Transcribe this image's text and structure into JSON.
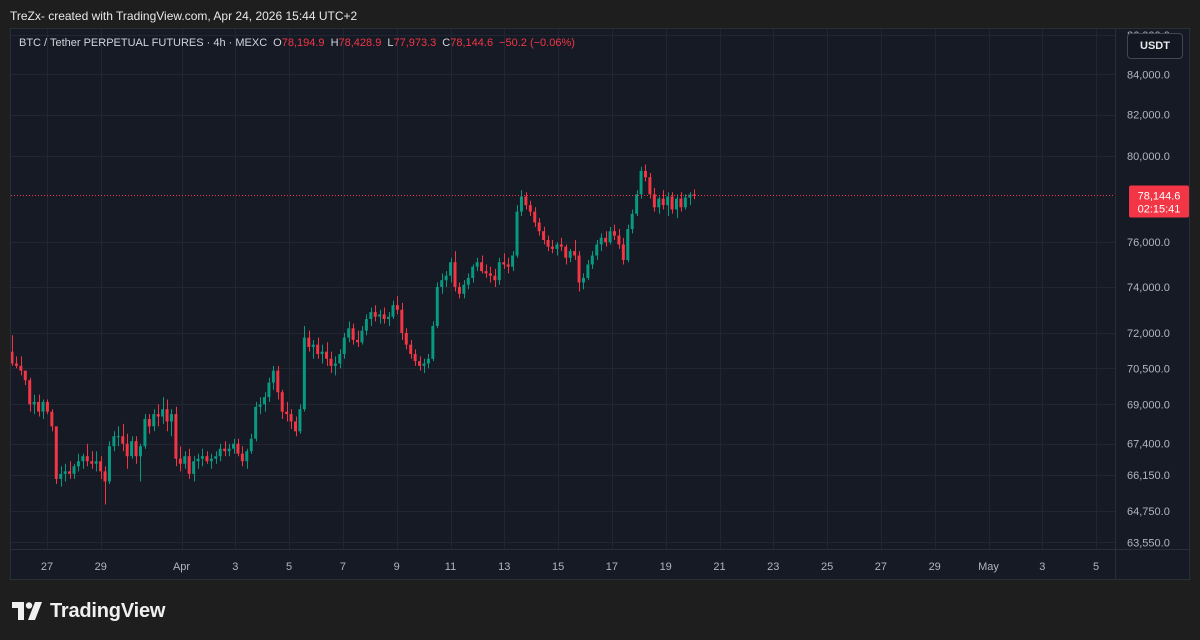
{
  "caption": "TreZx- created with TradingView.com, Apr 24, 2026 15:44 UTC+2",
  "legend": {
    "symbol": "BTC / Tether PERPETUAL FUTURES · 4h · MEXC",
    "o_label": "O",
    "o_value": "78,194.9",
    "h_label": "H",
    "h_value": "78,428.9",
    "l_label": "L",
    "l_value": "77,973.3",
    "c_label": "C",
    "c_value": "78,144.6",
    "change": "−50.2 (−0.06%)"
  },
  "currency_button": "USDT",
  "brand": "TradingView",
  "colors": {
    "up": "#089981",
    "down": "#f23645",
    "background": "#161a25",
    "grid": "#222632",
    "axis_text": "#b2b5be",
    "price_line": "#f23645"
  },
  "chart_data": {
    "type": "candlestick",
    "timeframe": "4h",
    "y_scale": "log",
    "ylim": [
      63300,
      86300
    ],
    "y_ticks": [
      {
        "value": 86000,
        "label": "86,000.0"
      },
      {
        "value": 84000,
        "label": "84,000.0"
      },
      {
        "value": 82000,
        "label": "82,000.0"
      },
      {
        "value": 80000,
        "label": "80,000.0"
      },
      {
        "value": 76000,
        "label": "76,000.0"
      },
      {
        "value": 74000,
        "label": "74,000.0"
      },
      {
        "value": 72000,
        "label": "72,000.0"
      },
      {
        "value": 70500,
        "label": "70,500.0"
      },
      {
        "value": 69000,
        "label": "69,000.0"
      },
      {
        "value": 67400,
        "label": "67,400.0"
      },
      {
        "value": 66150,
        "label": "66,150.0"
      },
      {
        "value": 64750,
        "label": "64,750.0"
      },
      {
        "value": 63550,
        "label": "63,550.0"
      }
    ],
    "x_ticks": [
      {
        "day": 0,
        "label": "27"
      },
      {
        "day": 2,
        "label": "29"
      },
      {
        "day": 5,
        "label": "Apr"
      },
      {
        "day": 7,
        "label": "3"
      },
      {
        "day": 9,
        "label": "5"
      },
      {
        "day": 11,
        "label": "7"
      },
      {
        "day": 13,
        "label": "9"
      },
      {
        "day": 15,
        "label": "11"
      },
      {
        "day": 17,
        "label": "13"
      },
      {
        "day": 19,
        "label": "15"
      },
      {
        "day": 21,
        "label": "17"
      },
      {
        "day": 23,
        "label": "19"
      },
      {
        "day": 25,
        "label": "21"
      },
      {
        "day": 27,
        "label": "23"
      },
      {
        "day": 29,
        "label": "25"
      },
      {
        "day": 31,
        "label": "27"
      },
      {
        "day": 33,
        "label": "29"
      },
      {
        "day": 35,
        "label": "May"
      },
      {
        "day": 37,
        "label": "3"
      },
      {
        "day": 39,
        "label": "5"
      }
    ],
    "last_price": 78144.6,
    "last_price_label": "78,144.6",
    "countdown": "02:15:41",
    "candles": [
      [
        71200,
        71900,
        70600,
        70700
      ],
      [
        70700,
        71000,
        70500,
        70600
      ],
      [
        70600,
        71000,
        70200,
        70400
      ],
      [
        70400,
        70400,
        69800,
        70000
      ],
      [
        70000,
        70100,
        68700,
        69000
      ],
      [
        69000,
        69400,
        68600,
        69100
      ],
      [
        69100,
        69400,
        68500,
        68700
      ],
      [
        68700,
        69200,
        68400,
        69100
      ],
      [
        69100,
        69200,
        68600,
        68700
      ],
      [
        68700,
        68800,
        67900,
        68100
      ],
      [
        68100,
        68100,
        65800,
        66000
      ],
      [
        66000,
        66500,
        65700,
        66200
      ],
      [
        66200,
        66600,
        65900,
        66300
      ],
      [
        66300,
        66700,
        66000,
        66200
      ],
      [
        66200,
        66600,
        66000,
        66500
      ],
      [
        66500,
        67000,
        66300,
        66700
      ],
      [
        66700,
        67000,
        66400,
        66900
      ],
      [
        66900,
        67400,
        66500,
        66700
      ],
      [
        66700,
        67100,
        66400,
        66600
      ],
      [
        66600,
        67100,
        66300,
        66700
      ],
      [
        66700,
        66900,
        66000,
        66300
      ],
      [
        66300,
        66500,
        65000,
        65900
      ],
      [
        65900,
        67500,
        65800,
        67300
      ],
      [
        67300,
        67900,
        67100,
        67700
      ],
      [
        67700,
        68100,
        67300,
        67700
      ],
      [
        67700,
        68200,
        67100,
        67400
      ],
      [
        67400,
        67800,
        66400,
        66900
      ],
      [
        66900,
        67700,
        66800,
        67500
      ],
      [
        67500,
        67700,
        66600,
        66900
      ],
      [
        66900,
        67400,
        65900,
        67300
      ],
      [
        67300,
        68600,
        67200,
        68400
      ],
      [
        68400,
        68600,
        67800,
        68100
      ],
      [
        68100,
        68800,
        67900,
        68600
      ],
      [
        68600,
        69000,
        68100,
        68500
      ],
      [
        68500,
        69300,
        68200,
        68800
      ],
      [
        68800,
        69200,
        67900,
        68300
      ],
      [
        68300,
        68800,
        67700,
        68600
      ],
      [
        68600,
        68900,
        66500,
        66800
      ],
      [
        66800,
        67300,
        66300,
        66600
      ],
      [
        66600,
        67100,
        66400,
        66900
      ],
      [
        66900,
        67200,
        66000,
        66200
      ],
      [
        66200,
        66900,
        65900,
        66700
      ],
      [
        66700,
        67000,
        66400,
        66800
      ],
      [
        66800,
        67200,
        66500,
        66900
      ],
      [
        66900,
        67100,
        66600,
        66700
      ],
      [
        66700,
        67000,
        66400,
        66800
      ],
      [
        66800,
        67100,
        66600,
        66900
      ],
      [
        66900,
        67400,
        66700,
        67200
      ],
      [
        67200,
        67500,
        66900,
        67100
      ],
      [
        67100,
        67400,
        66900,
        67200
      ],
      [
        67200,
        67600,
        67000,
        67400
      ],
      [
        67400,
        67600,
        66900,
        67000
      ],
      [
        67000,
        67300,
        66500,
        66700
      ],
      [
        66700,
        67200,
        66400,
        67100
      ],
      [
        67100,
        67800,
        67000,
        67600
      ],
      [
        67600,
        69100,
        67500,
        68900
      ],
      [
        68900,
        69300,
        68600,
        69000
      ],
      [
        69000,
        69500,
        68700,
        69300
      ],
      [
        69300,
        70100,
        69100,
        69900
      ],
      [
        69900,
        70600,
        69600,
        70400
      ],
      [
        70400,
        70600,
        69200,
        69500
      ],
      [
        69500,
        69600,
        68400,
        68700
      ],
      [
        68700,
        69100,
        68300,
        68600
      ],
      [
        68600,
        68800,
        68000,
        68300
      ],
      [
        68300,
        68500,
        67700,
        67900
      ],
      [
        67900,
        69000,
        67800,
        68800
      ],
      [
        68800,
        72300,
        68700,
        71800
      ],
      [
        71800,
        72100,
        71200,
        71400
      ],
      [
        71400,
        71700,
        70900,
        71500
      ],
      [
        71500,
        71800,
        70900,
        71100
      ],
      [
        71100,
        71500,
        70700,
        71200
      ],
      [
        71200,
        71600,
        70600,
        70900
      ],
      [
        70900,
        71200,
        70300,
        70600
      ],
      [
        70600,
        71000,
        70200,
        70700
      ],
      [
        70700,
        71300,
        70500,
        71100
      ],
      [
        71100,
        72000,
        70900,
        71800
      ],
      [
        71800,
        72500,
        71600,
        72200
      ],
      [
        72200,
        72400,
        71500,
        71700
      ],
      [
        71700,
        72100,
        71400,
        71600
      ],
      [
        71600,
        72300,
        71500,
        72100
      ],
      [
        72100,
        72800,
        71900,
        72600
      ],
      [
        72600,
        73100,
        72300,
        72900
      ],
      [
        72900,
        73200,
        72500,
        72700
      ],
      [
        72700,
        73000,
        72400,
        72800
      ],
      [
        72800,
        73100,
        72400,
        72600
      ],
      [
        72600,
        72900,
        72300,
        72700
      ],
      [
        72700,
        73400,
        72600,
        73200
      ],
      [
        73200,
        73600,
        72800,
        73000
      ],
      [
        73000,
        73300,
        71700,
        72000
      ],
      [
        72000,
        72200,
        71300,
        71500
      ],
      [
        71500,
        71700,
        70900,
        71100
      ],
      [
        71100,
        71300,
        70600,
        70800
      ],
      [
        70800,
        71000,
        70400,
        70600
      ],
      [
        70600,
        70900,
        70300,
        70700
      ],
      [
        70700,
        71100,
        70500,
        70900
      ],
      [
        70900,
        72500,
        70800,
        72300
      ],
      [
        72300,
        74200,
        72200,
        74000
      ],
      [
        74000,
        74600,
        73700,
        74300
      ],
      [
        74300,
        74700,
        74000,
        74500
      ],
      [
        74500,
        75300,
        74200,
        75100
      ],
      [
        75100,
        75600,
        73800,
        74000
      ],
      [
        74000,
        74200,
        73500,
        73700
      ],
      [
        73700,
        74300,
        73500,
        74100
      ],
      [
        74100,
        74600,
        73900,
        74400
      ],
      [
        74400,
        75000,
        74200,
        74900
      ],
      [
        74900,
        75300,
        74700,
        75100
      ],
      [
        75100,
        75400,
        74600,
        74700
      ],
      [
        74700,
        75000,
        74400,
        74600
      ],
      [
        74600,
        74900,
        74200,
        74500
      ],
      [
        74500,
        74800,
        74000,
        74300
      ],
      [
        74300,
        75300,
        74100,
        75100
      ],
      [
        75100,
        75500,
        74800,
        75000
      ],
      [
        75000,
        75300,
        74600,
        74900
      ],
      [
        74900,
        75600,
        74700,
        75400
      ],
      [
        75400,
        77700,
        75300,
        77400
      ],
      [
        77400,
        78400,
        77200,
        78100
      ],
      [
        78100,
        78300,
        77500,
        77700
      ],
      [
        77700,
        77900,
        77200,
        77400
      ],
      [
        77400,
        77600,
        76700,
        76900
      ],
      [
        76900,
        77100,
        76300,
        76500
      ],
      [
        76500,
        76700,
        75900,
        76100
      ],
      [
        76100,
        76300,
        75600,
        75800
      ],
      [
        75800,
        76100,
        75500,
        75700
      ],
      [
        75700,
        76000,
        75400,
        75900
      ],
      [
        75900,
        76200,
        75600,
        75800
      ],
      [
        75800,
        75900,
        75000,
        75300
      ],
      [
        75300,
        75700,
        75100,
        75600
      ],
      [
        75600,
        76100,
        75200,
        75400
      ],
      [
        75400,
        75600,
        73800,
        74200
      ],
      [
        74200,
        74600,
        73900,
        74400
      ],
      [
        74400,
        75200,
        74300,
        75000
      ],
      [
        75000,
        75600,
        74800,
        75400
      ],
      [
        75400,
        76100,
        75200,
        75900
      ],
      [
        75900,
        76400,
        75600,
        76200
      ],
      [
        76200,
        76500,
        75800,
        76000
      ],
      [
        76000,
        76700,
        75900,
        76500
      ],
      [
        76500,
        76800,
        76100,
        76300
      ],
      [
        76300,
        76600,
        75700,
        75900
      ],
      [
        75900,
        76200,
        75000,
        75200
      ],
      [
        75200,
        76800,
        75100,
        76600
      ],
      [
        76600,
        77500,
        76400,
        77300
      ],
      [
        77300,
        78400,
        77200,
        78200
      ],
      [
        78200,
        79500,
        78000,
        79300
      ],
      [
        79300,
        79600,
        78800,
        79000
      ],
      [
        79000,
        79200,
        78000,
        78200
      ],
      [
        78200,
        78500,
        77400,
        77600
      ],
      [
        77600,
        78100,
        77300,
        78000
      ],
      [
        78000,
        78400,
        77500,
        77700
      ],
      [
        77700,
        78300,
        77200,
        78100
      ],
      [
        78100,
        78300,
        77300,
        77500
      ],
      [
        77500,
        78200,
        77100,
        78000
      ],
      [
        78000,
        78300,
        77400,
        77600
      ],
      [
        77600,
        78200,
        77500,
        78050
      ],
      [
        78050,
        78300,
        77700,
        78194.9
      ],
      [
        78194.9,
        78428.9,
        77973.3,
        78144.6
      ]
    ]
  }
}
